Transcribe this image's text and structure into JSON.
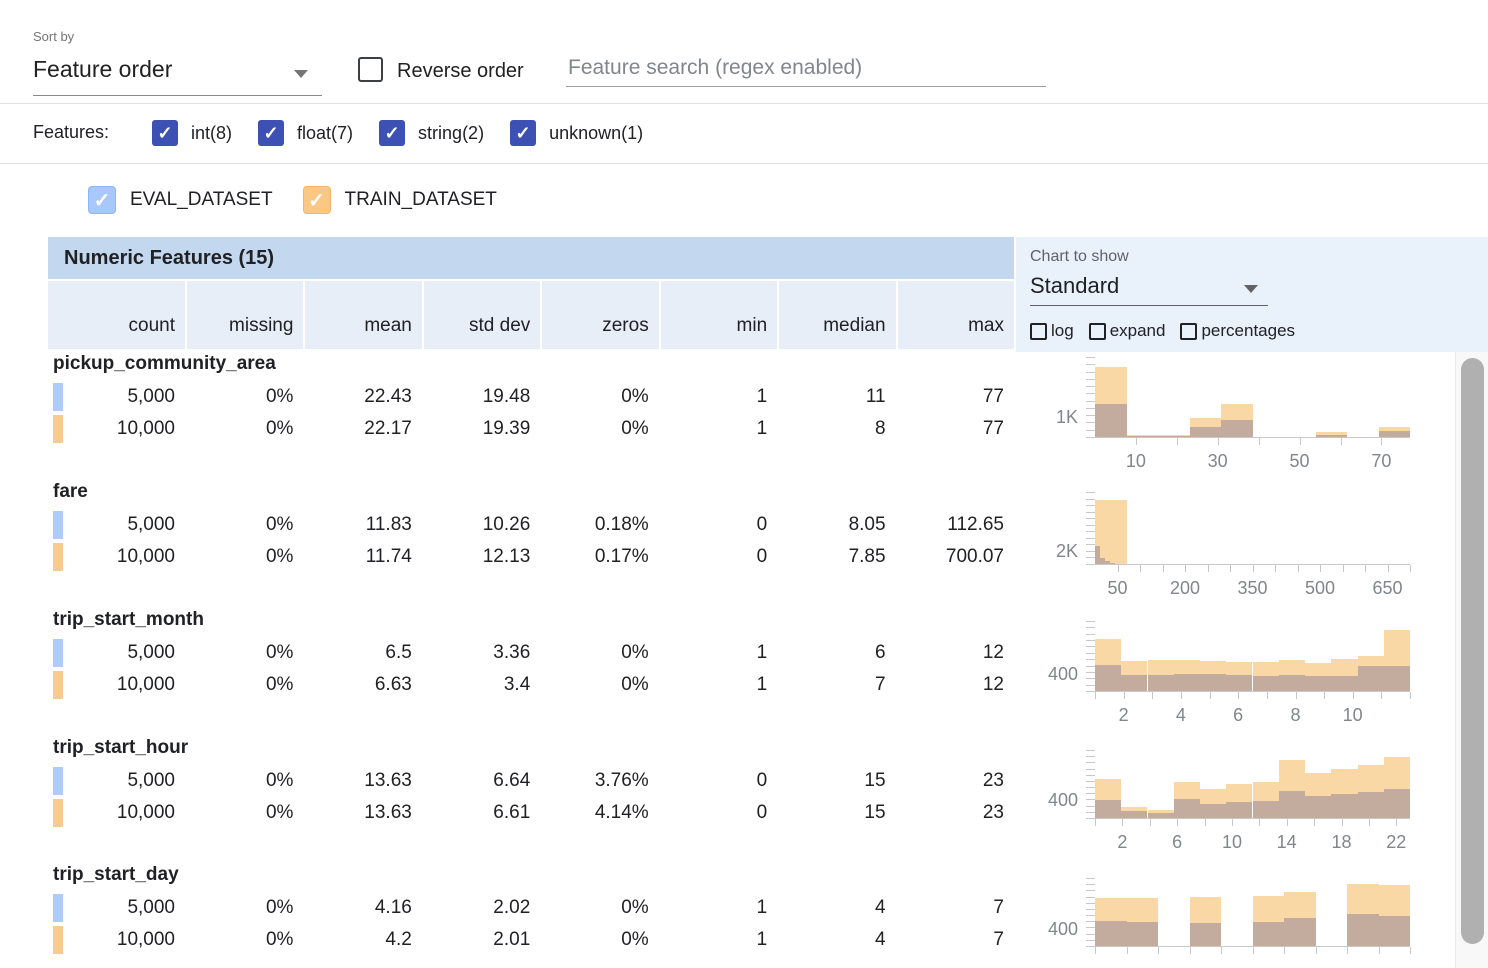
{
  "controls": {
    "sort_by_label": "Sort by",
    "sort_by_value": "Feature order",
    "reverse_order_label": "Reverse order",
    "reverse_order_checked": false,
    "search_placeholder": "Feature search (regex enabled)",
    "search_value": ""
  },
  "filters": {
    "label": "Features:",
    "accent_color": "#3d51b5",
    "items": [
      {
        "label": "int(8)",
        "checked": true
      },
      {
        "label": "float(7)",
        "checked": true
      },
      {
        "label": "string(2)",
        "checked": true
      },
      {
        "label": "unknown(1)",
        "checked": true
      }
    ]
  },
  "datasets": [
    {
      "name": "EVAL_DATASET",
      "color": "#a8c7fa",
      "checked": true
    },
    {
      "name": "TRAIN_DATASET",
      "color": "#fbc784",
      "checked": true
    }
  ],
  "table": {
    "title": "Numeric Features (15)",
    "columns": [
      "count",
      "missing",
      "mean",
      "std dev",
      "zeros",
      "min",
      "median",
      "max"
    ],
    "features": [
      {
        "name": "pickup_community_area",
        "rows": [
          {
            "dataset": "EVAL_DATASET",
            "swatch": "#aecbfa",
            "values": [
              "5,000",
              "0%",
              "22.43",
              "19.48",
              "0%",
              "1",
              "11",
              "77"
            ]
          },
          {
            "dataset": "TRAIN_DATASET",
            "swatch": "#f7ca8d",
            "values": [
              "10,000",
              "0%",
              "22.17",
              "19.39",
              "0%",
              "1",
              "8",
              "77"
            ]
          }
        ]
      },
      {
        "name": "fare",
        "rows": [
          {
            "dataset": "EVAL_DATASET",
            "swatch": "#aecbfa",
            "values": [
              "5,000",
              "0%",
              "11.83",
              "10.26",
              "0.18%",
              "0",
              "8.05",
              "112.65"
            ]
          },
          {
            "dataset": "TRAIN_DATASET",
            "swatch": "#f7ca8d",
            "values": [
              "10,000",
              "0%",
              "11.74",
              "12.13",
              "0.17%",
              "0",
              "7.85",
              "700.07"
            ]
          }
        ]
      },
      {
        "name": "trip_start_month",
        "rows": [
          {
            "dataset": "EVAL_DATASET",
            "swatch": "#aecbfa",
            "values": [
              "5,000",
              "0%",
              "6.5",
              "3.36",
              "0%",
              "1",
              "6",
              "12"
            ]
          },
          {
            "dataset": "TRAIN_DATASET",
            "swatch": "#f7ca8d",
            "values": [
              "10,000",
              "0%",
              "6.63",
              "3.4",
              "0%",
              "1",
              "7",
              "12"
            ]
          }
        ]
      },
      {
        "name": "trip_start_hour",
        "rows": [
          {
            "dataset": "EVAL_DATASET",
            "swatch": "#aecbfa",
            "values": [
              "5,000",
              "0%",
              "13.63",
              "6.64",
              "3.76%",
              "0",
              "15",
              "23"
            ]
          },
          {
            "dataset": "TRAIN_DATASET",
            "swatch": "#f7ca8d",
            "values": [
              "10,000",
              "0%",
              "13.63",
              "6.61",
              "4.14%",
              "0",
              "15",
              "23"
            ]
          }
        ]
      },
      {
        "name": "trip_start_day",
        "rows": [
          {
            "dataset": "EVAL_DATASET",
            "swatch": "#aecbfa",
            "values": [
              "5,000",
              "0%",
              "4.16",
              "2.02",
              "0%",
              "1",
              "4",
              "7"
            ]
          },
          {
            "dataset": "TRAIN_DATASET",
            "swatch": "#f7ca8d",
            "values": [
              "10,000",
              "0%",
              "4.2",
              "2.01",
              "0%",
              "1",
              "4",
              "7"
            ]
          }
        ]
      }
    ]
  },
  "chart_controls": {
    "label": "Chart to show",
    "selected": "Standard",
    "options": [
      {
        "label": "log",
        "checked": false
      },
      {
        "label": "expand",
        "checked": false
      },
      {
        "label": "percentages",
        "checked": false
      }
    ]
  },
  "chart_data": [
    {
      "type": "bar",
      "feature": "pickup_community_area",
      "x_domain": [
        0,
        77
      ],
      "y_axis": {
        "label": "1K",
        "value": 1000,
        "max": 4000
      },
      "x_ticks": [
        10,
        20,
        30,
        40,
        50,
        60,
        70
      ],
      "x_tick_labels": [
        10,
        30,
        50,
        70
      ],
      "train_color": "#fad8a6",
      "overlap_color": "#c3ab9e",
      "train_buckets": [
        [
          0,
          7.7,
          3500
        ],
        [
          7.7,
          15.4,
          80
        ],
        [
          15.4,
          23.1,
          120
        ],
        [
          23.1,
          30.8,
          950
        ],
        [
          30.8,
          38.5,
          1650
        ],
        [
          38.5,
          46.2,
          20
        ],
        [
          46.2,
          53.9,
          20
        ],
        [
          53.9,
          61.6,
          250
        ],
        [
          61.6,
          69.3,
          10
        ],
        [
          69.3,
          77,
          480
        ]
      ],
      "overlap_buckets": [
        [
          0,
          7.7,
          1650
        ],
        [
          7.7,
          15.4,
          30
        ],
        [
          15.4,
          23.1,
          50
        ],
        [
          23.1,
          30.8,
          480
        ],
        [
          30.8,
          38.5,
          830
        ],
        [
          38.5,
          46.2,
          10
        ],
        [
          46.2,
          53.9,
          10
        ],
        [
          53.9,
          61.6,
          100
        ],
        [
          61.6,
          69.3,
          5
        ],
        [
          69.3,
          77,
          280
        ]
      ]
    },
    {
      "type": "bar",
      "feature": "fare",
      "x_domain": [
        0,
        700
      ],
      "y_axis": {
        "label": "2K",
        "value": 2000,
        "max": 11000
      },
      "x_ticks": [
        50,
        100,
        150,
        200,
        250,
        300,
        350,
        400,
        450,
        500,
        550,
        600,
        650,
        700
      ],
      "x_tick_labels": [
        50,
        200,
        350,
        500,
        650
      ],
      "train_color": "#fad8a6",
      "overlap_color": "#c3ab9e",
      "train_buckets": [
        [
          0,
          70,
          9800
        ],
        [
          70,
          140,
          60
        ],
        [
          140,
          210,
          40
        ],
        [
          210,
          280,
          20
        ],
        [
          280,
          350,
          15
        ],
        [
          350,
          420,
          10
        ],
        [
          420,
          490,
          8
        ],
        [
          490,
          560,
          5
        ],
        [
          560,
          630,
          3
        ],
        [
          630,
          700,
          2
        ]
      ],
      "overlap_buckets": [
        [
          0,
          11.3,
          2800
        ],
        [
          11.3,
          22.5,
          900
        ],
        [
          22.5,
          33.8,
          400
        ],
        [
          33.8,
          45.1,
          150
        ],
        [
          45.1,
          56.3,
          60
        ],
        [
          56.3,
          67.6,
          30
        ],
        [
          67.6,
          78.9,
          15
        ],
        [
          78.9,
          90.1,
          10
        ],
        [
          90.1,
          101.4,
          5
        ],
        [
          101.4,
          112.7,
          3
        ]
      ]
    },
    {
      "type": "bar",
      "feature": "trip_start_month",
      "x_domain": [
        1,
        12
      ],
      "y_axis": {
        "label": "400",
        "value": 400,
        "max": 1650
      },
      "x_ticks": [
        1,
        2,
        3,
        4,
        5,
        6,
        7,
        8,
        9,
        10,
        11,
        12
      ],
      "x_tick_labels": [
        2,
        4,
        6,
        8,
        10
      ],
      "train_color": "#fad8a6",
      "overlap_color": "#c3ab9e",
      "train_buckets": [
        [
          1,
          1.917,
          1220
        ],
        [
          1.917,
          2.833,
          700
        ],
        [
          2.833,
          3.75,
          720
        ],
        [
          3.75,
          4.667,
          720
        ],
        [
          4.667,
          5.583,
          700
        ],
        [
          5.583,
          6.5,
          690
        ],
        [
          6.5,
          7.417,
          690
        ],
        [
          7.417,
          8.333,
          740
        ],
        [
          8.333,
          9.25,
          670
        ],
        [
          9.25,
          10.167,
          760
        ],
        [
          10.167,
          11.083,
          825
        ],
        [
          11.083,
          12,
          1430
        ]
      ],
      "overlap_buckets": [
        [
          1,
          1.917,
          610
        ],
        [
          1.917,
          2.833,
          380
        ],
        [
          2.833,
          3.75,
          385
        ],
        [
          3.75,
          4.667,
          400
        ],
        [
          4.667,
          5.583,
          395
        ],
        [
          5.583,
          6.5,
          380
        ],
        [
          6.5,
          7.417,
          360
        ],
        [
          7.417,
          8.333,
          380
        ],
        [
          8.333,
          9.25,
          360
        ],
        [
          9.25,
          10.167,
          360
        ],
        [
          10.167,
          11.083,
          600
        ],
        [
          11.083,
          12,
          590
        ]
      ]
    },
    {
      "type": "bar",
      "feature": "trip_start_hour",
      "x_domain": [
        0,
        23
      ],
      "y_axis": {
        "label": "400",
        "value": 400,
        "max": 1500
      },
      "x_ticks": [
        0,
        2,
        4,
        6,
        8,
        10,
        12,
        14,
        16,
        18,
        20,
        22
      ],
      "x_tick_labels": [
        2,
        6,
        10,
        14,
        18,
        22
      ],
      "train_color": "#fad8a6",
      "overlap_color": "#c3ab9e",
      "train_buckets": [
        [
          0,
          1.917,
          860
        ],
        [
          1.917,
          3.833,
          250
        ],
        [
          3.833,
          5.75,
          170
        ],
        [
          5.75,
          7.667,
          800
        ],
        [
          7.667,
          9.583,
          630
        ],
        [
          9.583,
          11.5,
          740
        ],
        [
          11.5,
          13.417,
          800
        ],
        [
          13.417,
          15.333,
          1280
        ],
        [
          15.333,
          17.25,
          990
        ],
        [
          17.25,
          19.167,
          1090
        ],
        [
          19.167,
          21.083,
          1160
        ],
        [
          21.083,
          23,
          1350
        ]
      ],
      "overlap_buckets": [
        [
          0,
          1.917,
          400
        ],
        [
          1.917,
          3.833,
          150
        ],
        [
          3.833,
          5.75,
          100
        ],
        [
          5.75,
          7.667,
          420
        ],
        [
          7.667,
          9.583,
          300
        ],
        [
          9.583,
          11.5,
          360
        ],
        [
          11.5,
          13.417,
          380
        ],
        [
          13.417,
          15.333,
          590
        ],
        [
          15.333,
          17.25,
          480
        ],
        [
          17.25,
          19.167,
          525
        ],
        [
          19.167,
          21.083,
          570
        ],
        [
          21.083,
          23,
          650
        ]
      ]
    },
    {
      "type": "bar",
      "feature": "trip_start_day",
      "x_domain": [
        1,
        7
      ],
      "y_axis": {
        "label": "400",
        "value": 400,
        "max": 1600
      },
      "x_ticks": [
        1,
        1.6,
        2.2,
        2.8,
        3.4,
        4,
        4.6,
        5.2,
        5.8,
        6.4,
        7
      ],
      "x_tick_labels": [],
      "train_color": "#fad8a6",
      "overlap_color": "#c3ab9e",
      "train_buckets": [
        [
          1,
          1.6,
          1120
        ],
        [
          1.6,
          2.2,
          1120
        ],
        [
          2.2,
          2.8,
          0
        ],
        [
          2.8,
          3.4,
          1160
        ],
        [
          3.4,
          4,
          0
        ],
        [
          4,
          4.6,
          1180
        ],
        [
          4.6,
          5.2,
          1280
        ],
        [
          5.2,
          5.8,
          0
        ],
        [
          5.8,
          6.4,
          1450
        ],
        [
          6.4,
          7,
          1430
        ]
      ],
      "overlap_buckets": [
        [
          1,
          1.6,
          590
        ],
        [
          1.6,
          2.2,
          570
        ],
        [
          2.2,
          2.8,
          0
        ],
        [
          2.8,
          3.4,
          550
        ],
        [
          3.4,
          4,
          0
        ],
        [
          4,
          4.6,
          570
        ],
        [
          4.6,
          5.2,
          650
        ],
        [
          5.2,
          5.8,
          0
        ],
        [
          5.8,
          6.4,
          760
        ],
        [
          6.4,
          7,
          695
        ]
      ]
    }
  ]
}
